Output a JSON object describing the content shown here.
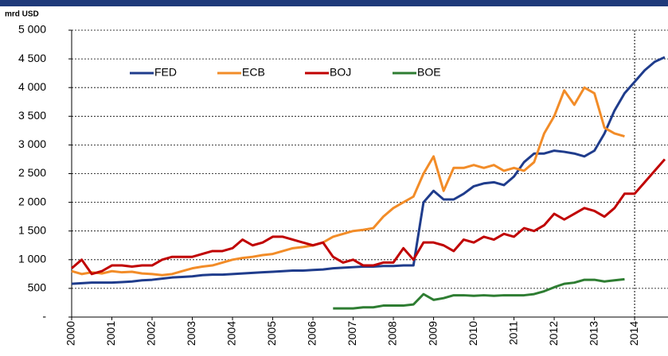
{
  "chart_data": {
    "type": "line",
    "y_axis_label": "mrd USD",
    "x": [
      2000,
      2000.25,
      2000.5,
      2000.75,
      2001,
      2001.25,
      2001.5,
      2001.75,
      2002,
      2002.25,
      2002.5,
      2002.75,
      2003,
      2003.25,
      2003.5,
      2003.75,
      2004,
      2004.25,
      2004.5,
      2004.75,
      2005,
      2005.25,
      2005.5,
      2005.75,
      2006,
      2006.25,
      2006.5,
      2006.75,
      2007,
      2007.25,
      2007.5,
      2007.75,
      2008,
      2008.25,
      2008.5,
      2008.75,
      2009,
      2009.25,
      2009.5,
      2009.75,
      2010,
      2010.25,
      2010.5,
      2010.75,
      2011,
      2011.25,
      2011.5,
      2011.75,
      2012,
      2012.25,
      2012.5,
      2012.75,
      2013,
      2013.25,
      2013.5,
      2013.75,
      2014,
      2014.25,
      2014.5,
      2014.75
    ],
    "series": [
      {
        "name": "FED",
        "color": "#1f3c8c",
        "values": [
          580,
          590,
          600,
          600,
          600,
          610,
          620,
          640,
          650,
          670,
          690,
          700,
          710,
          730,
          740,
          740,
          750,
          760,
          770,
          780,
          790,
          800,
          810,
          810,
          820,
          830,
          850,
          860,
          870,
          880,
          880,
          890,
          890,
          900,
          900,
          2000,
          2200,
          2050,
          2050,
          2150,
          2280,
          2330,
          2350,
          2300,
          2450,
          2700,
          2850,
          2850,
          2900,
          2880,
          2850,
          2800,
          2900,
          3200,
          3600,
          3900,
          4100,
          4300,
          4450,
          4530
        ]
      },
      {
        "name": "ECB",
        "color": "#f28c28",
        "values": [
          800,
          750,
          780,
          760,
          800,
          780,
          790,
          760,
          750,
          730,
          750,
          800,
          850,
          880,
          900,
          950,
          1000,
          1030,
          1050,
          1080,
          1100,
          1150,
          1200,
          1220,
          1250,
          1300,
          1400,
          1450,
          1500,
          1520,
          1550,
          1750,
          1900,
          2000,
          2100,
          2500,
          2800,
          2200,
          2600,
          2600,
          2650,
          2600,
          2650,
          2550,
          2600,
          2550,
          2700,
          3200,
          3500,
          3950,
          3700,
          4000,
          3900,
          3300,
          3200,
          3150,
          null,
          null,
          null,
          null
        ]
      },
      {
        "name": "BOJ",
        "color": "#c00000",
        "values": [
          850,
          1000,
          750,
          800,
          900,
          900,
          880,
          900,
          900,
          1000,
          1050,
          1050,
          1050,
          1100,
          1150,
          1150,
          1200,
          1350,
          1250,
          1300,
          1400,
          1400,
          1350,
          1300,
          1250,
          1300,
          1050,
          950,
          1000,
          900,
          900,
          950,
          950,
          1200,
          1000,
          1300,
          1300,
          1250,
          1150,
          1350,
          1300,
          1400,
          1350,
          1450,
          1400,
          1550,
          1500,
          1600,
          1800,
          1700,
          1800,
          1900,
          1850,
          1750,
          1900,
          2150,
          2150,
          2350,
          2550,
          2750
        ]
      },
      {
        "name": "BOE",
        "color": "#2e7d32",
        "values": [
          null,
          null,
          null,
          null,
          null,
          null,
          null,
          null,
          null,
          null,
          null,
          null,
          null,
          null,
          null,
          null,
          null,
          null,
          null,
          null,
          null,
          null,
          null,
          null,
          null,
          null,
          150,
          150,
          150,
          170,
          170,
          200,
          200,
          200,
          220,
          400,
          300,
          330,
          380,
          380,
          370,
          380,
          370,
          380,
          380,
          380,
          400,
          450,
          520,
          580,
          600,
          650,
          650,
          620,
          640,
          660,
          null,
          null,
          null,
          null
        ]
      }
    ],
    "xlim": [
      2000,
      2014.83
    ],
    "xticks": [
      2000,
      2001,
      2002,
      2003,
      2004,
      2005,
      2006,
      2007,
      2008,
      2009,
      2010,
      2011,
      2012,
      2013,
      2014
    ],
    "ylim": [
      0,
      5000
    ],
    "yticks": [
      {
        "value": 0,
        "label": "-"
      },
      {
        "value": 500,
        "label": "500"
      },
      {
        "value": 1000,
        "label": "1 000"
      },
      {
        "value": 1500,
        "label": "1 500"
      },
      {
        "value": 2000,
        "label": "2 000"
      },
      {
        "value": 2500,
        "label": "2 500"
      },
      {
        "value": 3000,
        "label": "3 000"
      },
      {
        "value": 3500,
        "label": "3 500"
      },
      {
        "value": 4000,
        "label": "4 000"
      },
      {
        "value": 4500,
        "label": "4 500"
      },
      {
        "value": 5000,
        "label": "5 000"
      }
    ],
    "vline": 2014,
    "grid": true,
    "legend": "top-left"
  }
}
